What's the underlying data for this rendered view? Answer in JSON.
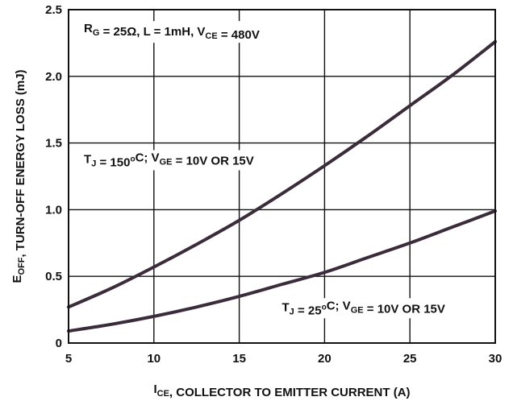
{
  "chart_data": {
    "type": "line",
    "xlabel": {
      "parts": [
        {
          "text": "I",
          "style": "normal"
        },
        {
          "text": "CE",
          "style": "sub"
        },
        {
          "text": ", COLLECTOR TO EMITTER CURRENT (A)",
          "style": "normal"
        }
      ]
    },
    "ylabel": {
      "parts": [
        {
          "text": "E",
          "style": "normal"
        },
        {
          "text": "OFF",
          "style": "sub"
        },
        {
          "text": ", TURN-OFF ENERGY LOSS (mJ)",
          "style": "normal"
        }
      ]
    },
    "xlim": [
      5,
      30
    ],
    "ylim": [
      0,
      2.5
    ],
    "x_ticks": [
      "5",
      "10",
      "15",
      "20",
      "25",
      "30"
    ],
    "y_ticks": [
      "0",
      "0.5",
      "1.0",
      "1.5",
      "2.0",
      "2.5"
    ],
    "grid": true,
    "annotations": [
      {
        "id": "conditions",
        "x": 5.9,
        "y": 2.33,
        "parts": [
          {
            "text": "R",
            "style": "normal"
          },
          {
            "text": "G",
            "style": "sub"
          },
          {
            "text": " = 25Ω, L = 1mH, V",
            "style": "normal"
          },
          {
            "text": "CE",
            "style": "sub"
          },
          {
            "text": " = 480V",
            "style": "normal"
          }
        ]
      },
      {
        "id": "tj-150",
        "x": 5.9,
        "y": 1.35,
        "parts": [
          {
            "text": "T",
            "style": "normal"
          },
          {
            "text": "J",
            "style": "sub"
          },
          {
            "text": " = 150",
            "style": "normal"
          },
          {
            "text": "o",
            "style": "sup"
          },
          {
            "text": "C; V",
            "style": "normal"
          },
          {
            "text": "GE",
            "style": "sub"
          },
          {
            "text": " = 10V OR 15V",
            "style": "normal"
          }
        ]
      },
      {
        "id": "tj-25",
        "x": 17.5,
        "y": 0.24,
        "parts": [
          {
            "text": "T",
            "style": "normal"
          },
          {
            "text": "J",
            "style": "sub"
          },
          {
            "text": " = 25",
            "style": "normal"
          },
          {
            "text": "o",
            "style": "sup"
          },
          {
            "text": "C; V",
            "style": "normal"
          },
          {
            "text": "GE",
            "style": "sub"
          },
          {
            "text": " = 10V OR 15V",
            "style": "normal"
          }
        ]
      }
    ],
    "series": [
      {
        "x": [
          5,
          7.5,
          10,
          12.5,
          15,
          17.5,
          20,
          22.5,
          25,
          27.5,
          30
        ],
        "values": [
          0.27,
          0.41,
          0.57,
          0.74,
          0.92,
          1.12,
          1.33,
          1.55,
          1.78,
          2.01,
          2.26
        ],
        "color": "#3a2c3a"
      },
      {
        "x": [
          5,
          7.5,
          10,
          12.5,
          15,
          17.5,
          20,
          22.5,
          25,
          27.5,
          30
        ],
        "values": [
          0.09,
          0.14,
          0.2,
          0.27,
          0.35,
          0.44,
          0.53,
          0.64,
          0.75,
          0.87,
          0.99
        ],
        "color": "#3a2c3a"
      }
    ]
  }
}
